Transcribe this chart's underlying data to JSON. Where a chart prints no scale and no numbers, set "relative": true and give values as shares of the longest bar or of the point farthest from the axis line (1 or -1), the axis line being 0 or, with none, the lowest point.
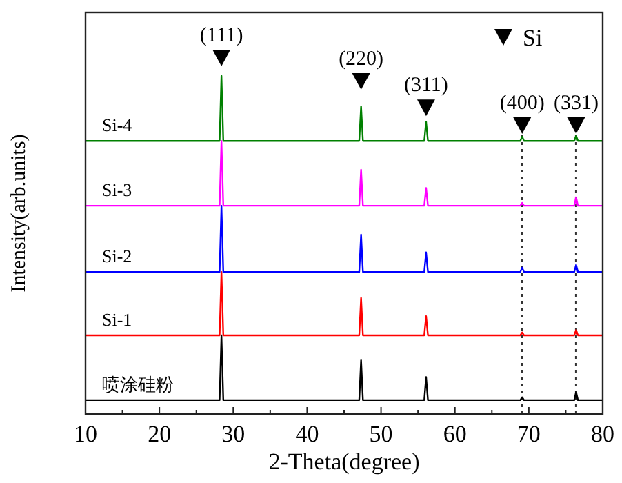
{
  "chart_data": {
    "type": "line",
    "relative": true,
    "xlabel": "2-Theta(degree)",
    "ylabel": "Intensity(arb.units)",
    "xlim": [
      10,
      80
    ],
    "xticks": [
      10,
      {
        "value": 15,
        "label": null
      },
      20,
      {
        "value": 25,
        "label": null
      },
      30,
      {
        "value": 35,
        "label": null
      },
      40,
      {
        "value": 45,
        "label": null
      },
      50,
      {
        "value": 55,
        "label": null
      },
      60,
      {
        "value": 65,
        "label": null
      },
      70,
      {
        "value": 75,
        "label": null
      },
      80
    ],
    "tick_labels": "x",
    "legend": "top right",
    "x": [
      10,
      28.15,
      28.4,
      28.65,
      47.05,
      47.3,
      47.55,
      55.85,
      56.1,
      56.35,
      68.85,
      69.1,
      69.35,
      76.15,
      76.4,
      76.65,
      80
    ],
    "series": [
      {
        "name": "喷涂硅粉",
        "color": "#000000",
        "values": [
          0.039,
          0.039,
          0.221,
          0.039,
          0.039,
          0.151,
          0.039,
          0.039,
          0.104,
          0.039,
          0.039,
          0.047,
          0.039,
          0.039,
          0.062,
          0.039,
          0.039
        ]
      },
      {
        "name": "Si-1",
        "color": "#ff0000",
        "values": [
          0.221,
          0.221,
          0.399,
          0.221,
          0.221,
          0.326,
          0.221,
          0.221,
          0.275,
          0.221,
          0.221,
          0.229,
          0.221,
          0.221,
          0.236,
          0.221,
          0.221
        ]
      },
      {
        "name": "Si-2",
        "color": "#0000ff",
        "values": [
          0.399,
          0.399,
          0.585,
          0.399,
          0.399,
          0.504,
          0.399,
          0.399,
          0.454,
          0.399,
          0.399,
          0.411,
          0.399,
          0.399,
          0.419,
          0.399,
          0.399
        ]
      },
      {
        "name": "Si-3",
        "color": "#ff00ff",
        "values": [
          0.585,
          0.585,
          0.767,
          0.585,
          0.585,
          0.686,
          0.585,
          0.585,
          0.635,
          0.585,
          0.585,
          0.593,
          0.585,
          0.585,
          0.609,
          0.585,
          0.585
        ]
      },
      {
        "name": "Si-4",
        "color": "#008000",
        "values": [
          0.767,
          0.767,
          0.95,
          0.767,
          0.767,
          0.864,
          0.767,
          0.767,
          0.821,
          0.767,
          0.767,
          0.779,
          0.767,
          0.767,
          0.782,
          0.767,
          0.767
        ]
      },
      {
        "name": "Si",
        "type": "scatter",
        "marker": "triangle",
        "color": "#000000",
        "x": [
          28.4,
          47.3,
          56.1,
          69.1,
          76.4
        ],
        "values": [
          1.0,
          0.934,
          0.86,
          0.81,
          0.81
        ]
      }
    ],
    "annotations": [
      "(111)",
      "(220)",
      "(311)",
      "(400)",
      "(331)"
    ],
    "ref_lines": [
      {
        "axis": "x",
        "value": 69.1,
        "color": "#333333",
        "line_style": "dotted"
      },
      {
        "axis": "x",
        "value": 76.4,
        "color": "#333333",
        "line_style": "dotted"
      }
    ]
  }
}
